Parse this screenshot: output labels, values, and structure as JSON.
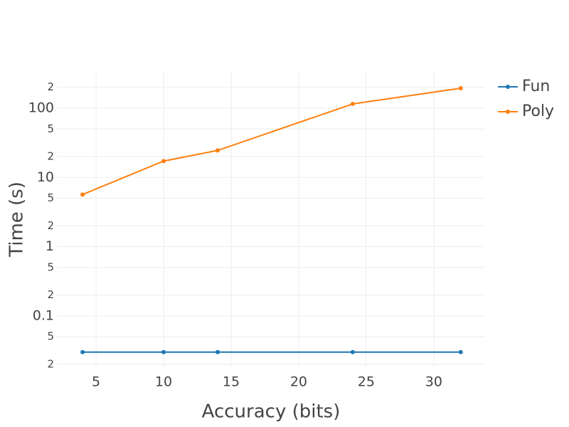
{
  "chart_data": {
    "type": "line",
    "x_label": "Accuracy (bits)",
    "y_label": "Time (s)",
    "x": [
      4,
      10,
      14,
      24,
      32
    ],
    "series": [
      {
        "name": "Fun",
        "color": "#1f77b4",
        "values": [
          0.03,
          0.03,
          0.03,
          0.03,
          0.03
        ]
      },
      {
        "name": "Poly",
        "color": "#ff7f0e",
        "values": [
          5.66,
          17.2,
          24.5,
          115,
          194
        ]
      }
    ],
    "xlim": [
      2.1,
      33.8
    ],
    "xticks": [
      5,
      10,
      15,
      20,
      25,
      30
    ],
    "ylim": [
      0.0186,
      342
    ],
    "y_log": true,
    "yticks": [
      {
        "value": 0.02,
        "label": "2"
      },
      {
        "value": 0.05,
        "label": "5"
      },
      0.1,
      {
        "value": 0.2,
        "label": "2"
      },
      {
        "value": 0.5,
        "label": "5"
      },
      1,
      {
        "value": 2,
        "label": "2"
      },
      {
        "value": 5,
        "label": "5"
      },
      10,
      {
        "value": 20,
        "label": "2"
      },
      {
        "value": 50,
        "label": "5"
      },
      100,
      {
        "value": 200,
        "label": "2"
      }
    ],
    "grid": true,
    "legend": "right"
  }
}
